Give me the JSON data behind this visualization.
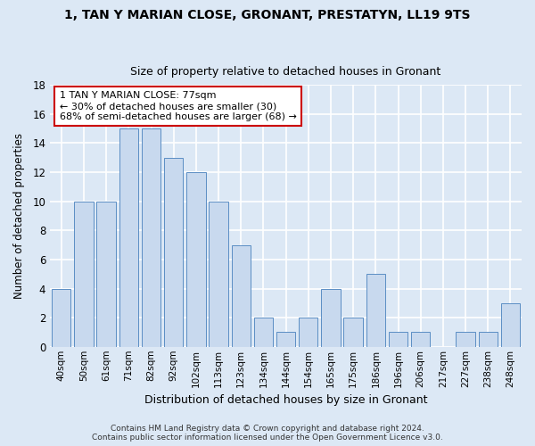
{
  "title": "1, TAN Y MARIAN CLOSE, GRONANT, PRESTATYN, LL19 9TS",
  "subtitle": "Size of property relative to detached houses in Gronant",
  "xlabel": "Distribution of detached houses by size in Gronant",
  "ylabel": "Number of detached properties",
  "categories": [
    "40sqm",
    "50sqm",
    "61sqm",
    "71sqm",
    "82sqm",
    "92sqm",
    "102sqm",
    "113sqm",
    "123sqm",
    "134sqm",
    "144sqm",
    "154sqm",
    "165sqm",
    "175sqm",
    "186sqm",
    "196sqm",
    "206sqm",
    "217sqm",
    "227sqm",
    "238sqm",
    "248sqm"
  ],
  "values": [
    4,
    10,
    10,
    15,
    15,
    13,
    12,
    10,
    7,
    2,
    1,
    2,
    4,
    2,
    5,
    1,
    1,
    0,
    1,
    1,
    3
  ],
  "bar_color": "#c8d9ee",
  "bar_edge_color": "#5b8ec4",
  "background_color": "#dce8f5",
  "grid_color": "#ffffff",
  "annotation_text": "1 TAN Y MARIAN CLOSE: 77sqm\n← 30% of detached houses are smaller (30)\n68% of semi-detached houses are larger (68) →",
  "annotation_box_color": "#ffffff",
  "annotation_box_edge": "#cc0000",
  "footer_line1": "Contains HM Land Registry data © Crown copyright and database right 2024.",
  "footer_line2": "Contains public sector information licensed under the Open Government Licence v3.0.",
  "ylim": [
    0,
    18
  ],
  "yticks": [
    0,
    2,
    4,
    6,
    8,
    10,
    12,
    14,
    16,
    18
  ]
}
